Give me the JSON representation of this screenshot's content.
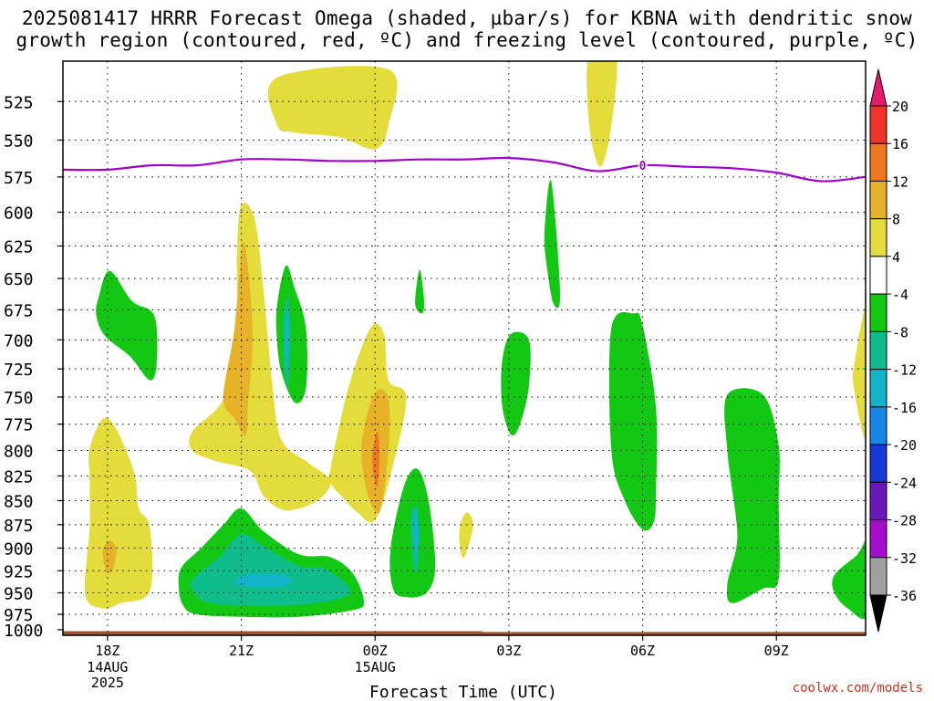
{
  "title_line1": "2025081417 HRRR Forecast Omega (shaded, µbar/s) for KBNA with dendritic snow",
  "title_line2": "growth region (contoured, red, ºC) and freezing level (contoured, purple, ºC)",
  "credit": "coolwx.com/models",
  "chart_data": {
    "type": "contour",
    "title": "2025081417 HRRR Forecast Omega (shaded, µbar/s) for KBNA with dendritic snow growth region (contoured, red, ºC) and freezing level (contoured, purple, ºC)",
    "xlabel": "Forecast Time (UTC)",
    "ylabel": "",
    "x_ticks": [
      {
        "hour": 1,
        "label": "18Z",
        "sub": [
          "14AUG",
          "2025"
        ]
      },
      {
        "hour": 4,
        "label": "21Z",
        "sub": []
      },
      {
        "hour": 7,
        "label": "00Z",
        "sub": [
          "15AUG"
        ]
      },
      {
        "hour": 10,
        "label": "03Z",
        "sub": []
      },
      {
        "hour": 13,
        "label": "06Z",
        "sub": []
      },
      {
        "hour": 16,
        "label": "09Z",
        "sub": []
      }
    ],
    "xlim_hours": [
      0,
      18
    ],
    "y_levels_hpa": [
      525,
      550,
      575,
      600,
      625,
      650,
      675,
      700,
      725,
      750,
      775,
      800,
      825,
      850,
      875,
      900,
      925,
      950,
      975,
      1000
    ],
    "ylim_hpa": [
      500,
      1000
    ],
    "y_scale": "log-pressure",
    "grid": true,
    "colorbar": {
      "labels": [
        "20",
        "16",
        "12",
        "8",
        "4",
        "-4",
        "-8",
        "-12",
        "-16",
        "-20",
        "-24",
        "-28",
        "-32",
        "-36"
      ],
      "colors": [
        "#e8186a",
        "#f0342a",
        "#ec7820",
        "#e8b228",
        "#e4dc3a",
        "#ffffff",
        "#12c812",
        "#0ebc8c",
        "#12b4c8",
        "#1686e8",
        "#1838d8",
        "#6818b8",
        "#a40eca",
        "#a0a0a0",
        "#000000"
      ]
    },
    "freezing_level": {
      "color": "#a000c8",
      "label": "0",
      "points": [
        [
          0,
          570
        ],
        [
          1,
          570
        ],
        [
          2,
          567
        ],
        [
          3,
          567
        ],
        [
          4,
          563
        ],
        [
          5,
          563
        ],
        [
          6,
          564
        ],
        [
          7,
          564
        ],
        [
          8,
          563
        ],
        [
          9,
          563
        ],
        [
          10,
          562
        ],
        [
          11,
          565
        ],
        [
          12,
          571
        ],
        [
          13,
          567
        ],
        [
          14,
          568
        ],
        [
          15,
          569
        ],
        [
          16,
          572
        ],
        [
          17,
          578
        ],
        [
          18,
          575
        ]
      ]
    },
    "omega_regions": [
      {
        "value": "4",
        "color": "#e4dc3a",
        "points": [
          [
            4.8,
            510
          ],
          [
            7.3,
            505
          ],
          [
            7.3,
            540
          ],
          [
            7,
            556
          ],
          [
            6.2,
            548
          ],
          [
            5.2,
            545
          ],
          [
            4.8,
            540
          ]
        ]
      },
      {
        "value": "4",
        "color": "#e4dc3a",
        "points": [
          [
            11.8,
            495
          ],
          [
            12.4,
            495
          ],
          [
            12.3,
            540
          ],
          [
            12.05,
            568
          ],
          [
            11.8,
            540
          ]
        ]
      },
      {
        "value": "4",
        "color": "#e4dc3a",
        "points": [
          [
            2.9,
            782
          ],
          [
            3.6,
            752
          ],
          [
            3.9,
            700
          ],
          [
            3.9,
            632
          ],
          [
            4.0,
            595
          ],
          [
            4.3,
            605
          ],
          [
            4.5,
            660
          ],
          [
            4.7,
            740
          ],
          [
            4.9,
            790
          ],
          [
            5.5,
            812
          ],
          [
            6.0,
            830
          ],
          [
            5.7,
            850
          ],
          [
            5.0,
            860
          ],
          [
            4.5,
            845
          ],
          [
            4.2,
            820
          ],
          [
            3.4,
            810
          ],
          [
            2.9,
            800
          ]
        ]
      },
      {
        "value": "4",
        "color": "#e4dc3a",
        "points": [
          [
            6.0,
            818
          ],
          [
            6.4,
            742
          ],
          [
            6.9,
            690
          ],
          [
            7.2,
            695
          ],
          [
            7.3,
            735
          ],
          [
            7.7,
            750
          ],
          [
            7.4,
            815
          ],
          [
            7.0,
            870
          ],
          [
            6.6,
            862
          ],
          [
            6.3,
            848
          ],
          [
            6.0,
            832
          ]
        ]
      },
      {
        "value": "4",
        "color": "#e4dc3a",
        "points": [
          [
            0.6,
            798
          ],
          [
            0.9,
            770
          ],
          [
            1.2,
            780
          ],
          [
            1.6,
            822
          ],
          [
            1.7,
            858
          ],
          [
            1.95,
            878
          ],
          [
            1.95,
            948
          ],
          [
            1.3,
            962
          ],
          [
            0.9,
            968
          ],
          [
            0.5,
            952
          ],
          [
            0.6,
            878
          ],
          [
            0.6,
            830
          ]
        ]
      },
      {
        "value": "4",
        "color": "#e4dc3a",
        "points": [
          [
            8.9,
            878
          ],
          [
            9.05,
            862
          ],
          [
            9.2,
            876
          ],
          [
            9.0,
            910
          ],
          [
            8.9,
            898
          ]
        ]
      },
      {
        "value": "4",
        "color": "#e4dc3a",
        "points": [
          [
            17.75,
            720
          ],
          [
            18.05,
            672
          ],
          [
            18.05,
            790
          ],
          [
            17.75,
            745
          ]
        ]
      },
      {
        "value": "8",
        "color": "#e8b228",
        "points": [
          [
            3.6,
            750
          ],
          [
            3.85,
            690
          ],
          [
            4.05,
            622
          ],
          [
            4.25,
            690
          ],
          [
            4.15,
            758
          ],
          [
            4.1,
            786
          ],
          [
            3.85,
            770
          ]
        ]
      },
      {
        "value": "8",
        "color": "#e8b228",
        "points": [
          [
            6.7,
            792
          ],
          [
            7.0,
            746
          ],
          [
            7.3,
            752
          ],
          [
            7.3,
            800
          ],
          [
            7.1,
            862
          ],
          [
            6.8,
            838
          ]
        ]
      },
      {
        "value": "8",
        "color": "#e8b228",
        "points": [
          [
            0.9,
            902
          ],
          [
            1.05,
            892
          ],
          [
            1.2,
            902
          ],
          [
            1.1,
            926
          ],
          [
            0.95,
            922
          ]
        ]
      },
      {
        "value": "12",
        "color": "#ec7820",
        "points": [
          [
            6.95,
            800
          ],
          [
            7.05,
            782
          ],
          [
            7.1,
            805
          ],
          [
            7.05,
            835
          ],
          [
            6.95,
            820
          ]
        ]
      },
      {
        "value": "-4",
        "color": "#12c812",
        "points": [
          [
            0.8,
            665
          ],
          [
            1.05,
            644
          ],
          [
            1.55,
            668
          ],
          [
            2.05,
            680
          ],
          [
            2.1,
            720
          ],
          [
            1.95,
            735
          ],
          [
            1.5,
            714
          ],
          [
            0.95,
            697
          ],
          [
            0.75,
            680
          ]
        ]
      },
      {
        "value": "-4",
        "color": "#12c812",
        "points": [
          [
            4.8,
            672
          ],
          [
            5.0,
            640
          ],
          [
            5.2,
            658
          ],
          [
            5.45,
            690
          ],
          [
            5.45,
            742
          ],
          [
            5.2,
            755
          ],
          [
            4.9,
            728
          ],
          [
            4.8,
            700
          ]
        ]
      },
      {
        "value": "-4",
        "color": "#12c812",
        "points": [
          [
            7.9,
            670
          ],
          [
            8.0,
            643
          ],
          [
            8.1,
            668
          ],
          [
            8.05,
            678
          ]
        ]
      },
      {
        "value": "-4",
        "color": "#12c812",
        "points": [
          [
            9.85,
            718
          ],
          [
            10.05,
            695
          ],
          [
            10.45,
            700
          ],
          [
            10.45,
            740
          ],
          [
            10.25,
            775
          ],
          [
            10.05,
            785
          ],
          [
            9.85,
            758
          ]
        ]
      },
      {
        "value": "-4",
        "color": "#12c812",
        "points": [
          [
            10.8,
            615
          ],
          [
            10.95,
            578
          ],
          [
            11.15,
            662
          ],
          [
            11.0,
            670
          ],
          [
            10.85,
            640
          ]
        ]
      },
      {
        "value": "-4",
        "color": "#12c812",
        "points": [
          [
            12.3,
            690
          ],
          [
            12.8,
            678
          ],
          [
            13.0,
            688
          ],
          [
            13.3,
            760
          ],
          [
            13.3,
            840
          ],
          [
            13.25,
            872
          ],
          [
            13.0,
            880
          ],
          [
            12.6,
            850
          ],
          [
            12.3,
            800
          ]
        ]
      },
      {
        "value": "-4",
        "color": "#12c812",
        "points": [
          [
            14.9,
            748
          ],
          [
            15.7,
            748
          ],
          [
            16.05,
            795
          ],
          [
            16.05,
            850
          ],
          [
            16.05,
            935
          ],
          [
            15.7,
            945
          ],
          [
            15.0,
            962
          ],
          [
            14.9,
            940
          ],
          [
            15.1,
            900
          ],
          [
            15.1,
            870
          ],
          [
            14.9,
            800
          ]
        ]
      },
      {
        "value": "-4",
        "color": "#12c812",
        "points": [
          [
            17.3,
            930
          ],
          [
            17.8,
            908
          ],
          [
            18.05,
            895
          ],
          [
            18.05,
            976
          ],
          [
            17.6,
            968
          ],
          [
            17.3,
            950
          ]
        ]
      },
      {
        "value": "-4",
        "color": "#12c812",
        "points": [
          [
            7.4,
            945
          ],
          [
            7.35,
            900
          ],
          [
            7.65,
            835
          ],
          [
            7.95,
            818
          ],
          [
            8.2,
            850
          ],
          [
            8.35,
            920
          ],
          [
            8.15,
            950
          ],
          [
            7.7,
            955
          ]
        ]
      },
      {
        "value": "-4",
        "color": "#12c812",
        "points": [
          [
            2.65,
            922
          ],
          [
            3.1,
            900
          ],
          [
            3.6,
            875
          ],
          [
            4.0,
            858
          ],
          [
            4.5,
            882
          ],
          [
            5.3,
            907
          ],
          [
            6.0,
            910
          ],
          [
            6.5,
            928
          ],
          [
            6.75,
            960
          ],
          [
            6.5,
            970
          ],
          [
            5.3,
            978
          ],
          [
            4.0,
            978
          ],
          [
            3.0,
            975
          ],
          [
            2.7,
            965
          ],
          [
            2.6,
            945
          ]
        ]
      },
      {
        "value": "-8",
        "color": "#0ebc8c",
        "points": [
          [
            2.9,
            935
          ],
          [
            3.5,
            910
          ],
          [
            4.0,
            885
          ],
          [
            4.5,
            898
          ],
          [
            5.3,
            920
          ],
          [
            5.9,
            923
          ],
          [
            6.45,
            950
          ],
          [
            5.5,
            963
          ],
          [
            4.0,
            965
          ],
          [
            3.2,
            960
          ],
          [
            2.95,
            950
          ]
        ]
      },
      {
        "value": "-8",
        "color": "#0ebc8c",
        "points": [
          [
            4.95,
            680
          ],
          [
            5.05,
            665
          ],
          [
            5.1,
            700
          ],
          [
            5.05,
            740
          ],
          [
            4.95,
            720
          ]
        ]
      },
      {
        "value": "-8",
        "color": "#0ebc8c",
        "points": [
          [
            7.8,
            870
          ],
          [
            7.9,
            855
          ],
          [
            8.0,
            880
          ],
          [
            7.95,
            925
          ],
          [
            7.85,
            915
          ]
        ]
      },
      {
        "value": "-12",
        "color": "#12b4c8",
        "points": [
          [
            4.0,
            930
          ],
          [
            5.0,
            930
          ],
          [
            5.0,
            942
          ],
          [
            4.0,
            942
          ]
        ]
      },
      {
        "value": "-12",
        "color": "#12b4c8",
        "points": [
          [
            5.0,
            683
          ],
          [
            5.05,
            673
          ],
          [
            5.07,
            700
          ],
          [
            5.02,
            730
          ],
          [
            4.98,
            705
          ]
        ]
      },
      {
        "value": "-12",
        "color": "#12b4c8",
        "points": [
          [
            7.87,
            868
          ],
          [
            7.93,
            858
          ],
          [
            7.97,
            885
          ],
          [
            7.92,
            905
          ],
          [
            7.86,
            890
          ]
        ]
      }
    ],
    "ground": {
      "color": "#a0522d",
      "points": [
        [
          0,
          995
        ],
        [
          9.4,
          995
        ],
        [
          9.4,
          996
        ],
        [
          18,
          996
        ],
        [
          18,
          1003
        ],
        [
          0,
          1003
        ]
      ]
    }
  }
}
